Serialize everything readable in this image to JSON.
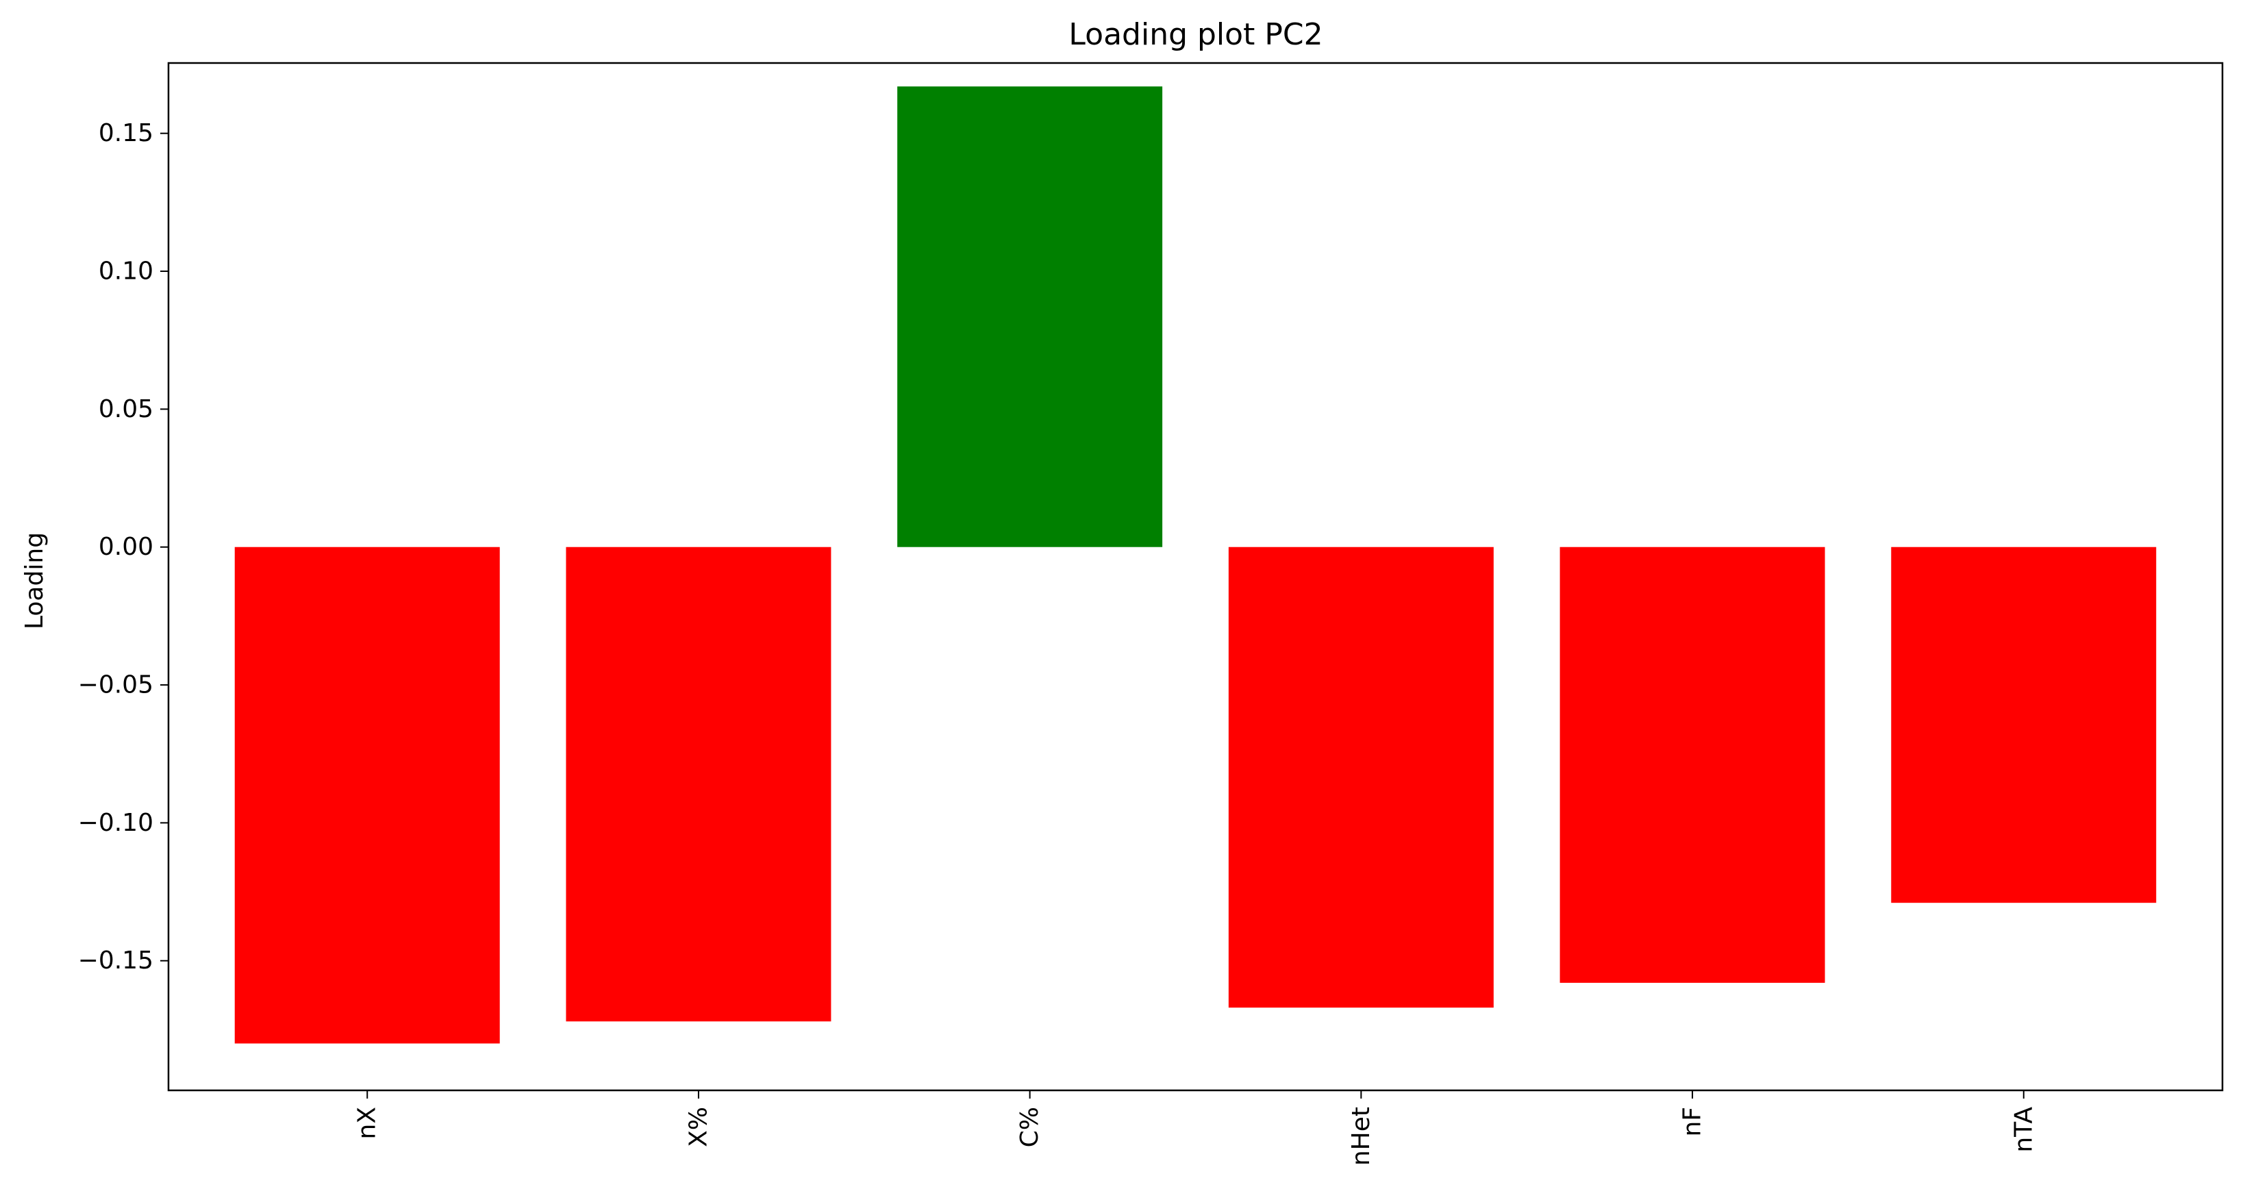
{
  "chart_data": {
    "type": "bar",
    "title": "Loading plot PC2",
    "xlabel": "",
    "ylabel": "Loading",
    "categories": [
      "nX",
      "X%",
      "C%",
      "nHet",
      "nF",
      "nTA"
    ],
    "values": [
      -0.18,
      -0.172,
      0.167,
      -0.167,
      -0.158,
      -0.129
    ],
    "bar_colors": [
      "#ff0000",
      "#ff0000",
      "#008000",
      "#ff0000",
      "#ff0000",
      "#ff0000"
    ],
    "ylim": [
      -0.197,
      0.1755
    ],
    "yticks": [
      0.15,
      0.1,
      0.05,
      0.0,
      -0.05,
      -0.1,
      -0.15
    ],
    "ytick_labels": [
      "0.15",
      "0.10",
      "0.05",
      "0.00",
      "−0.05",
      "−0.10",
      "−0.15"
    ],
    "grid": false,
    "legend": "none"
  }
}
